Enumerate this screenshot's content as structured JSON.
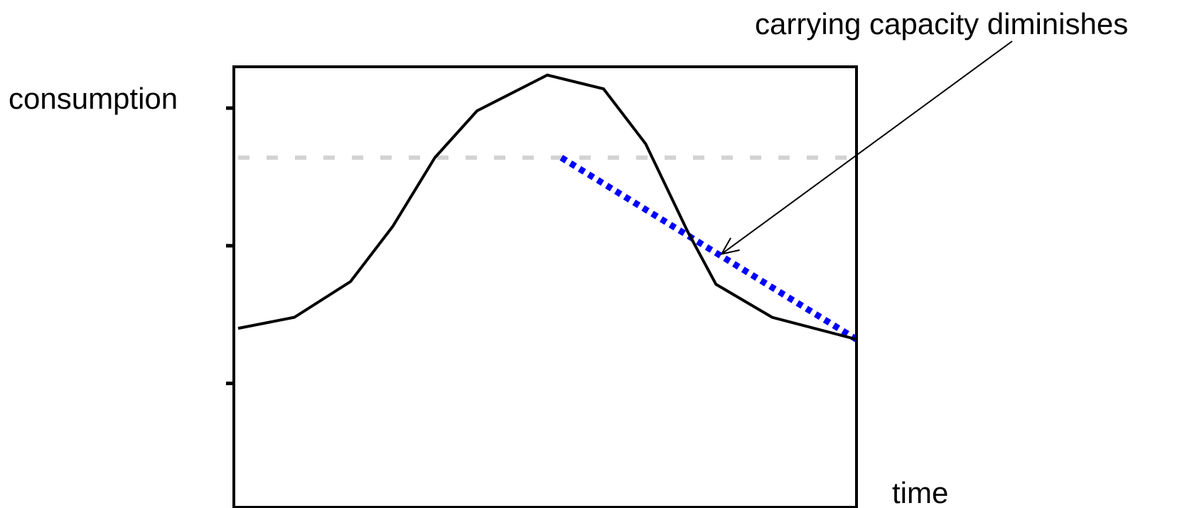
{
  "chart_data": {
    "type": "line",
    "title": "",
    "xlabel": "time",
    "ylabel": "consumption",
    "xlim": [
      0,
      22
    ],
    "ylim": [
      0,
      16
    ],
    "y_ticks": [
      4.5,
      9.5,
      14.5
    ],
    "grid": false,
    "legend": "none",
    "series": [
      {
        "style": "solid",
        "color": "#000000",
        "x": [
          0,
          2,
          4,
          5.5,
          7,
          8.5,
          11,
          13,
          14.5,
          16,
          17,
          19,
          22
        ],
        "y": [
          6.5,
          6.9,
          8.2,
          10.2,
          12.7,
          14.4,
          15.7,
          15.2,
          13.2,
          10,
          8.1,
          6.9,
          6.1
        ]
      },
      {
        "style": "dashed",
        "color": "#d3d3d3",
        "x": [
          0,
          22
        ],
        "y": [
          12.7,
          12.7
        ]
      },
      {
        "style": "dotted",
        "color": "#0000ff",
        "x": [
          11.5,
          22
        ],
        "y": [
          12.7,
          6.1
        ]
      }
    ],
    "annotations": [
      {
        "text": "carrying capacity diminishes",
        "arrow_to": [
          17.2,
          9.2
        ]
      }
    ]
  }
}
